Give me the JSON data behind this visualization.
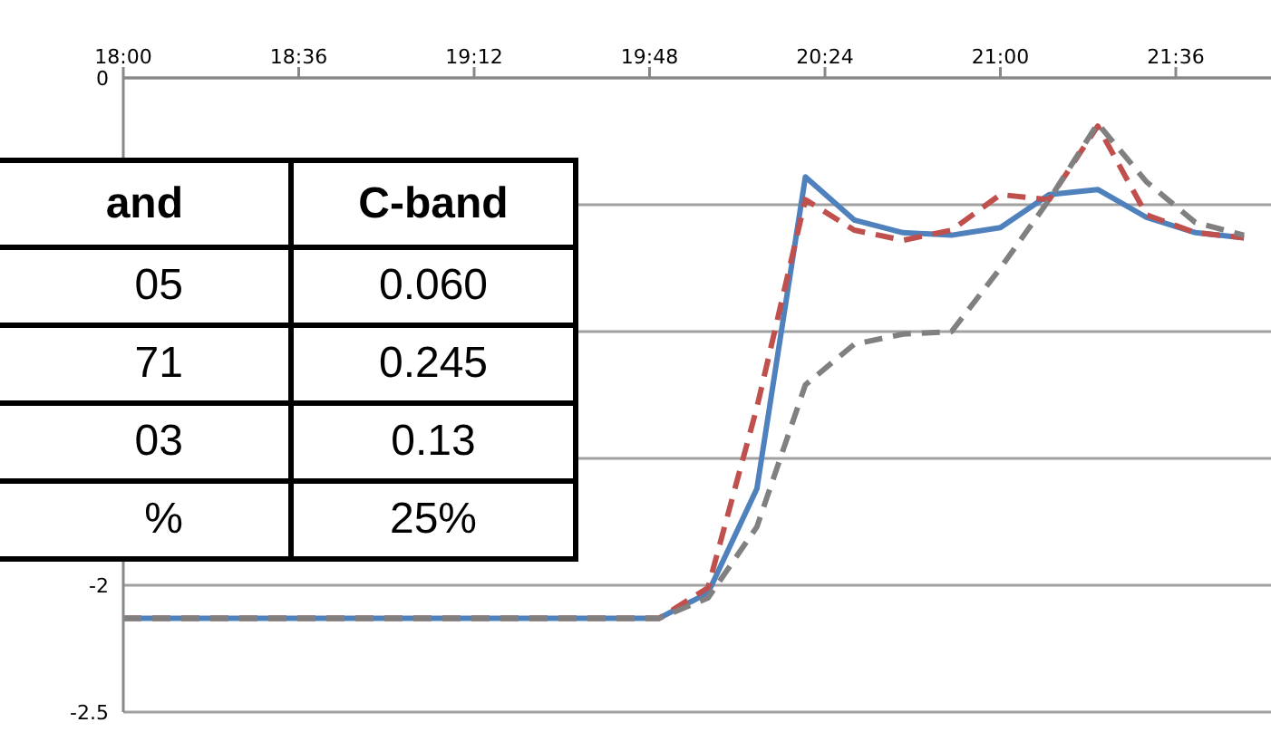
{
  "chart_data": {
    "type": "line",
    "x": [
      18,
      19.833,
      20,
      20.167,
      20.333,
      20.5,
      20.667,
      20.833,
      21,
      21.167,
      21.333,
      21.5,
      21.667,
      21.833
    ],
    "series": [
      {
        "color": "#4f81bd",
        "line_style": "solid",
        "values": [
          -2.13,
          -2.13,
          -2.03,
          -1.62,
          -0.39,
          -0.56,
          -0.61,
          -0.62,
          -0.59,
          -0.46,
          -0.44,
          -0.55,
          -0.61,
          -0.63
        ]
      },
      {
        "color": "#c0504d",
        "line_style": "dashed",
        "values": [
          -2.13,
          -2.13,
          -2.01,
          -1.3,
          -0.48,
          -0.6,
          -0.64,
          -0.6,
          -0.46,
          -0.48,
          -0.19,
          -0.54,
          -0.61,
          -0.63
        ]
      },
      {
        "color": "#808080",
        "line_style": "dashed",
        "values": [
          -2.13,
          -2.13,
          -2.05,
          -1.77,
          -1.21,
          -1.05,
          -1.01,
          -1.0,
          -0.75,
          -0.48,
          -0.18,
          -0.41,
          -0.57,
          -0.62
        ]
      }
    ],
    "xlim": [
      18,
      22
    ],
    "xticks": [
      {
        "value": 18,
        "label": "18:00"
      },
      {
        "value": 18.6,
        "label": "18:36"
      },
      {
        "value": 19.2,
        "label": "19:12"
      },
      {
        "value": 19.8,
        "label": "19:48"
      },
      {
        "value": 20.4,
        "label": "20:24"
      },
      {
        "value": 21,
        "label": "21:00"
      },
      {
        "value": 21.6,
        "label": "21:36"
      }
    ],
    "ylim": [
      -2.5,
      0
    ],
    "yticks": [
      0,
      {
        "value": -0.5,
        "label": null
      },
      {
        "value": -1,
        "label": null
      },
      {
        "value": -1.5,
        "label": null
      },
      -2,
      -2.5
    ],
    "grid": "y",
    "marker": "none",
    "annotations": [
      "and",
      "C-band",
      "05",
      "0.060",
      "71",
      "0.245",
      "03",
      "0.13",
      "%",
      "25%"
    ]
  }
}
